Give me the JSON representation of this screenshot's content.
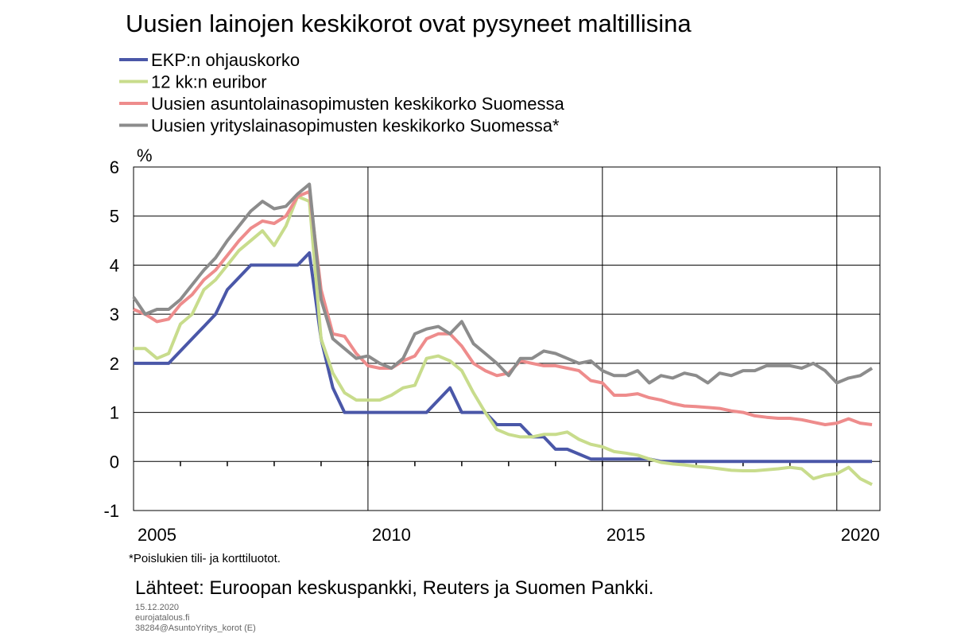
{
  "chart_data": {
    "type": "line",
    "title": "Uusien lainojen keskikorot ovat pysyneet maltillisina",
    "y_unit": "%",
    "x": [
      2005,
      2005.25,
      2005.5,
      2005.75,
      2006,
      2006.25,
      2006.5,
      2006.75,
      2007,
      2007.25,
      2007.5,
      2007.75,
      2008,
      2008.25,
      2008.5,
      2008.75,
      2009,
      2009.25,
      2009.5,
      2009.75,
      2010,
      2010.25,
      2010.5,
      2010.75,
      2011,
      2011.25,
      2011.5,
      2011.75,
      2012,
      2012.25,
      2012.5,
      2012.75,
      2013,
      2013.25,
      2013.5,
      2013.75,
      2014,
      2014.25,
      2014.5,
      2014.75,
      2015,
      2015.25,
      2015.5,
      2015.75,
      2016,
      2016.25,
      2016.5,
      2016.75,
      2017,
      2017.25,
      2017.5,
      2017.75,
      2018,
      2018.25,
      2018.5,
      2018.75,
      2019,
      2019.25,
      2019.5,
      2019.75,
      2020,
      2020.25,
      2020.5,
      2020.75
    ],
    "series": [
      {
        "name": "EKP:n ohjauskorko",
        "color": "#4a57a8",
        "values": [
          2,
          2,
          2,
          2,
          2.25,
          2.5,
          2.75,
          3.0,
          3.5,
          3.75,
          4.0,
          4.0,
          4.0,
          4.0,
          4.0,
          4.25,
          2.5,
          1.5,
          1.0,
          1.0,
          1.0,
          1.0,
          1.0,
          1.0,
          1.0,
          1.0,
          1.25,
          1.5,
          1.0,
          1.0,
          1.0,
          0.75,
          0.75,
          0.75,
          0.5,
          0.5,
          0.25,
          0.25,
          0.15,
          0.05,
          0.05,
          0.05,
          0.05,
          0.05,
          0.05,
          0,
          0,
          0,
          0,
          0,
          0,
          0,
          0,
          0,
          0,
          0,
          0,
          0,
          0,
          0,
          0,
          0,
          0,
          0
        ]
      },
      {
        "name": "12 kk:n euribor",
        "color": "#c8dc8c",
        "values": [
          2.3,
          2.3,
          2.1,
          2.2,
          2.8,
          3.0,
          3.5,
          3.7,
          4.0,
          4.3,
          4.5,
          4.7,
          4.4,
          4.8,
          5.4,
          5.3,
          2.5,
          1.8,
          1.4,
          1.25,
          1.25,
          1.25,
          1.35,
          1.5,
          1.55,
          2.1,
          2.15,
          2.05,
          1.85,
          1.4,
          1.0,
          0.65,
          0.55,
          0.5,
          0.5,
          0.55,
          0.55,
          0.6,
          0.45,
          0.35,
          0.3,
          0.2,
          0.17,
          0.13,
          0.05,
          -0.02,
          -0.05,
          -0.07,
          -0.1,
          -0.12,
          -0.15,
          -0.18,
          -0.19,
          -0.19,
          -0.17,
          -0.15,
          -0.12,
          -0.15,
          -0.35,
          -0.28,
          -0.25,
          -0.12,
          -0.35,
          -0.47
        ]
      },
      {
        "name": "Uusien asuntolainasopimusten keskikorko Suomessa",
        "color": "#ee8c8c",
        "values": [
          3.1,
          3.0,
          2.85,
          2.9,
          3.2,
          3.4,
          3.7,
          3.9,
          4.2,
          4.5,
          4.75,
          4.9,
          4.85,
          5.0,
          5.4,
          5.5,
          3.5,
          2.6,
          2.55,
          2.2,
          1.95,
          1.9,
          1.9,
          2.05,
          2.15,
          2.5,
          2.6,
          2.6,
          2.35,
          2.0,
          1.85,
          1.75,
          1.8,
          2.05,
          2.0,
          1.95,
          1.95,
          1.9,
          1.85,
          1.65,
          1.6,
          1.35,
          1.35,
          1.38,
          1.3,
          1.25,
          1.18,
          1.13,
          1.12,
          1.1,
          1.08,
          1.03,
          1.0,
          0.93,
          0.9,
          0.88,
          0.88,
          0.85,
          0.8,
          0.75,
          0.78,
          0.87,
          0.78,
          0.75
        ]
      },
      {
        "name": "Uusien yrityslainasopimusten keskikorko Suomessa*",
        "color": "#8c8c8c",
        "values": [
          3.35,
          3.0,
          3.1,
          3.1,
          3.3,
          3.6,
          3.9,
          4.15,
          4.5,
          4.8,
          5.1,
          5.3,
          5.15,
          5.2,
          5.45,
          5.65,
          3.3,
          2.5,
          2.3,
          2.1,
          2.15,
          2.0,
          1.9,
          2.1,
          2.6,
          2.7,
          2.75,
          2.6,
          2.85,
          2.4,
          2.2,
          2.0,
          1.75,
          2.1,
          2.1,
          2.25,
          2.2,
          2.1,
          2.0,
          2.05,
          1.85,
          1.75,
          1.75,
          1.85,
          1.6,
          1.75,
          1.7,
          1.8,
          1.75,
          1.6,
          1.8,
          1.75,
          1.85,
          1.85,
          1.95,
          1.95,
          1.95,
          1.9,
          2.0,
          1.85,
          1.6,
          1.7,
          1.75,
          1.9
        ]
      }
    ],
    "xlim": [
      2005,
      2020.92
    ],
    "ylim": [
      -1,
      6
    ],
    "yticks": [
      -1,
      0,
      1,
      2,
      3,
      4,
      5,
      6
    ],
    "xticks": [
      {
        "value": 2005.5,
        "label": "2005"
      },
      {
        "value": 2010.5,
        "label": "2010"
      },
      {
        "value": 2015.5,
        "label": "2015"
      },
      {
        "value": 2020.5,
        "label": "2020"
      }
    ],
    "x_gridlines": [
      2010,
      2015,
      2020
    ],
    "x_minor_ticks": [
      2006,
      2007,
      2008,
      2009,
      2010,
      2011,
      2012,
      2013,
      2014,
      2015,
      2016,
      2017,
      2018,
      2019,
      2020
    ],
    "grid": true,
    "footnote": "*Poislukien tili- ja korttiluotot.",
    "source": "Lähteet: Euroopan keskuspankki, Reuters ja Suomen Pankki.",
    "stamp": [
      "15.12.2020",
      "eurojatalous.fi",
      "38284@AsuntoYritys_korot (E)"
    ]
  }
}
